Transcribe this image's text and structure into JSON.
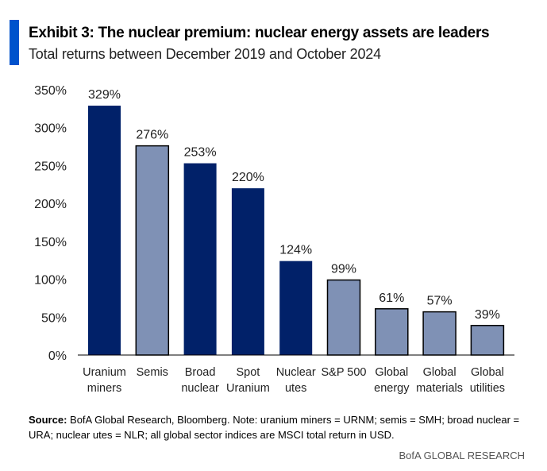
{
  "header": {
    "title": "Exhibit 3: The nuclear premium: nuclear energy assets are leaders",
    "subtitle": "Total returns between December 2019 and October 2024"
  },
  "chart_data": {
    "type": "bar",
    "categories": [
      [
        "Uranium",
        "miners"
      ],
      [
        "Semis"
      ],
      [
        "Broad",
        "nuclear"
      ],
      [
        "Spot",
        "Uranium"
      ],
      [
        "Nuclear",
        "utes"
      ],
      [
        "S&P 500"
      ],
      [
        "Global",
        "energy"
      ],
      [
        "Global",
        "materials"
      ],
      [
        "Global",
        "utilities"
      ]
    ],
    "values": [
      329,
      276,
      253,
      220,
      124,
      99,
      61,
      57,
      39
    ],
    "data_labels": [
      "329%",
      "276%",
      "253%",
      "220%",
      "124%",
      "99%",
      "61%",
      "57%",
      "39%"
    ],
    "highlight": [
      true,
      false,
      true,
      true,
      true,
      false,
      false,
      false,
      false
    ],
    "colors": {
      "highlight": "#012169",
      "other": "#7F91B5"
    },
    "yticks": [
      "0%",
      "50%",
      "100%",
      "150%",
      "200%",
      "250%",
      "300%",
      "350%"
    ],
    "ylim": [
      0,
      350
    ],
    "grid": false
  },
  "footer": {
    "source_label": "Source:",
    "source_text": " BofA Global Research, Bloomberg. Note: uranium miners = URNM; semis = SMH; broad nuclear = URA; nuclear utes = NLR; all global sector indices are MSCI total return in USD.",
    "brand": "BofA GLOBAL RESEARCH"
  }
}
